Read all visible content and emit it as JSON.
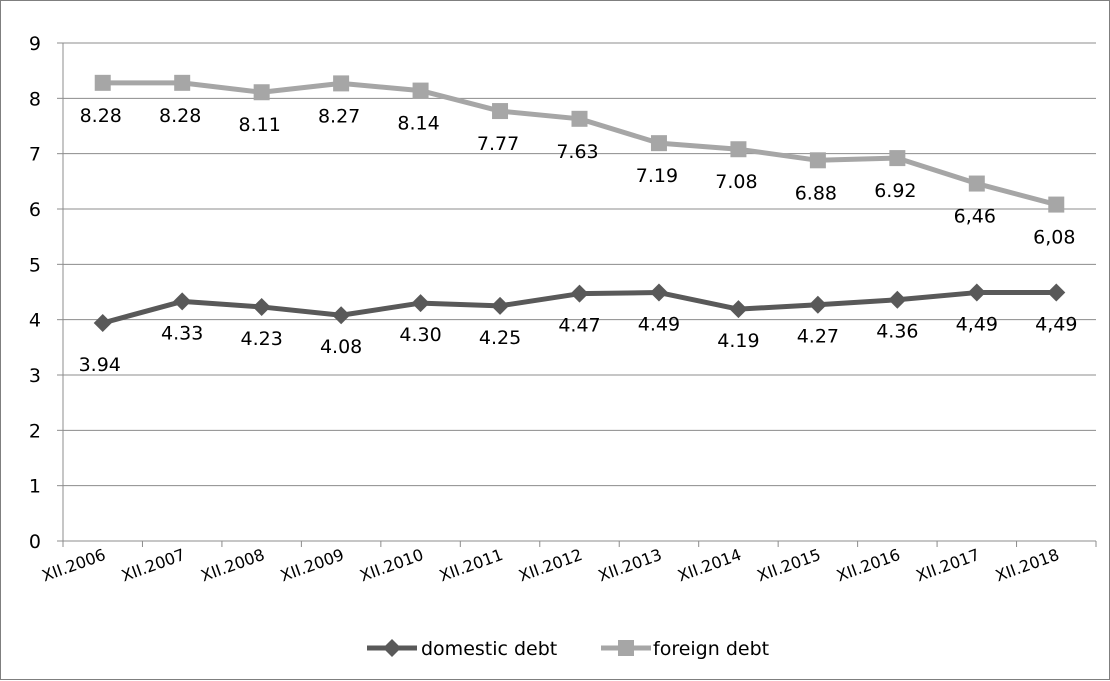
{
  "chart_data": {
    "type": "line",
    "categories": [
      "XII.2006",
      "XII.2007",
      "XII.2008",
      "XII.2009",
      "XII.2010",
      "XII.2011",
      "XII.2012",
      "XII.2013",
      "XII.2014",
      "XII.2015",
      "XII.2016",
      "XII.2017",
      "XII.2018"
    ],
    "ylim": [
      0,
      9
    ],
    "yticks": [
      "0",
      "1",
      "2",
      "3",
      "4",
      "5",
      "6",
      "7",
      "8",
      "9"
    ],
    "grid": true,
    "legend_position": "bottom",
    "series": [
      {
        "name": "domestic debt",
        "marker": "diamond",
        "color": "#595959",
        "values": [
          3.94,
          4.33,
          4.23,
          4.08,
          4.3,
          4.25,
          4.47,
          4.49,
          4.19,
          4.27,
          4.36,
          4.49,
          4.49
        ],
        "labels": [
          "3.94",
          "4.33",
          "4.23",
          "4.08",
          "4.30",
          "4.25",
          "4.47",
          "4.49",
          "4.19",
          "4.27",
          "4.36",
          "4,49",
          "4,49"
        ]
      },
      {
        "name": "foreign debt",
        "marker": "square",
        "color": "#a6a6a6",
        "values": [
          8.28,
          8.28,
          8.11,
          8.27,
          8.14,
          7.77,
          7.63,
          7.19,
          7.08,
          6.88,
          6.92,
          6.46,
          6.08
        ],
        "labels": [
          "8.28",
          "8.28",
          "8.11",
          "8.27",
          "8.14",
          "7.77",
          "7.63",
          "7.19",
          "7.08",
          "6.88",
          "6.92",
          "6,46",
          "6,08"
        ]
      }
    ]
  }
}
